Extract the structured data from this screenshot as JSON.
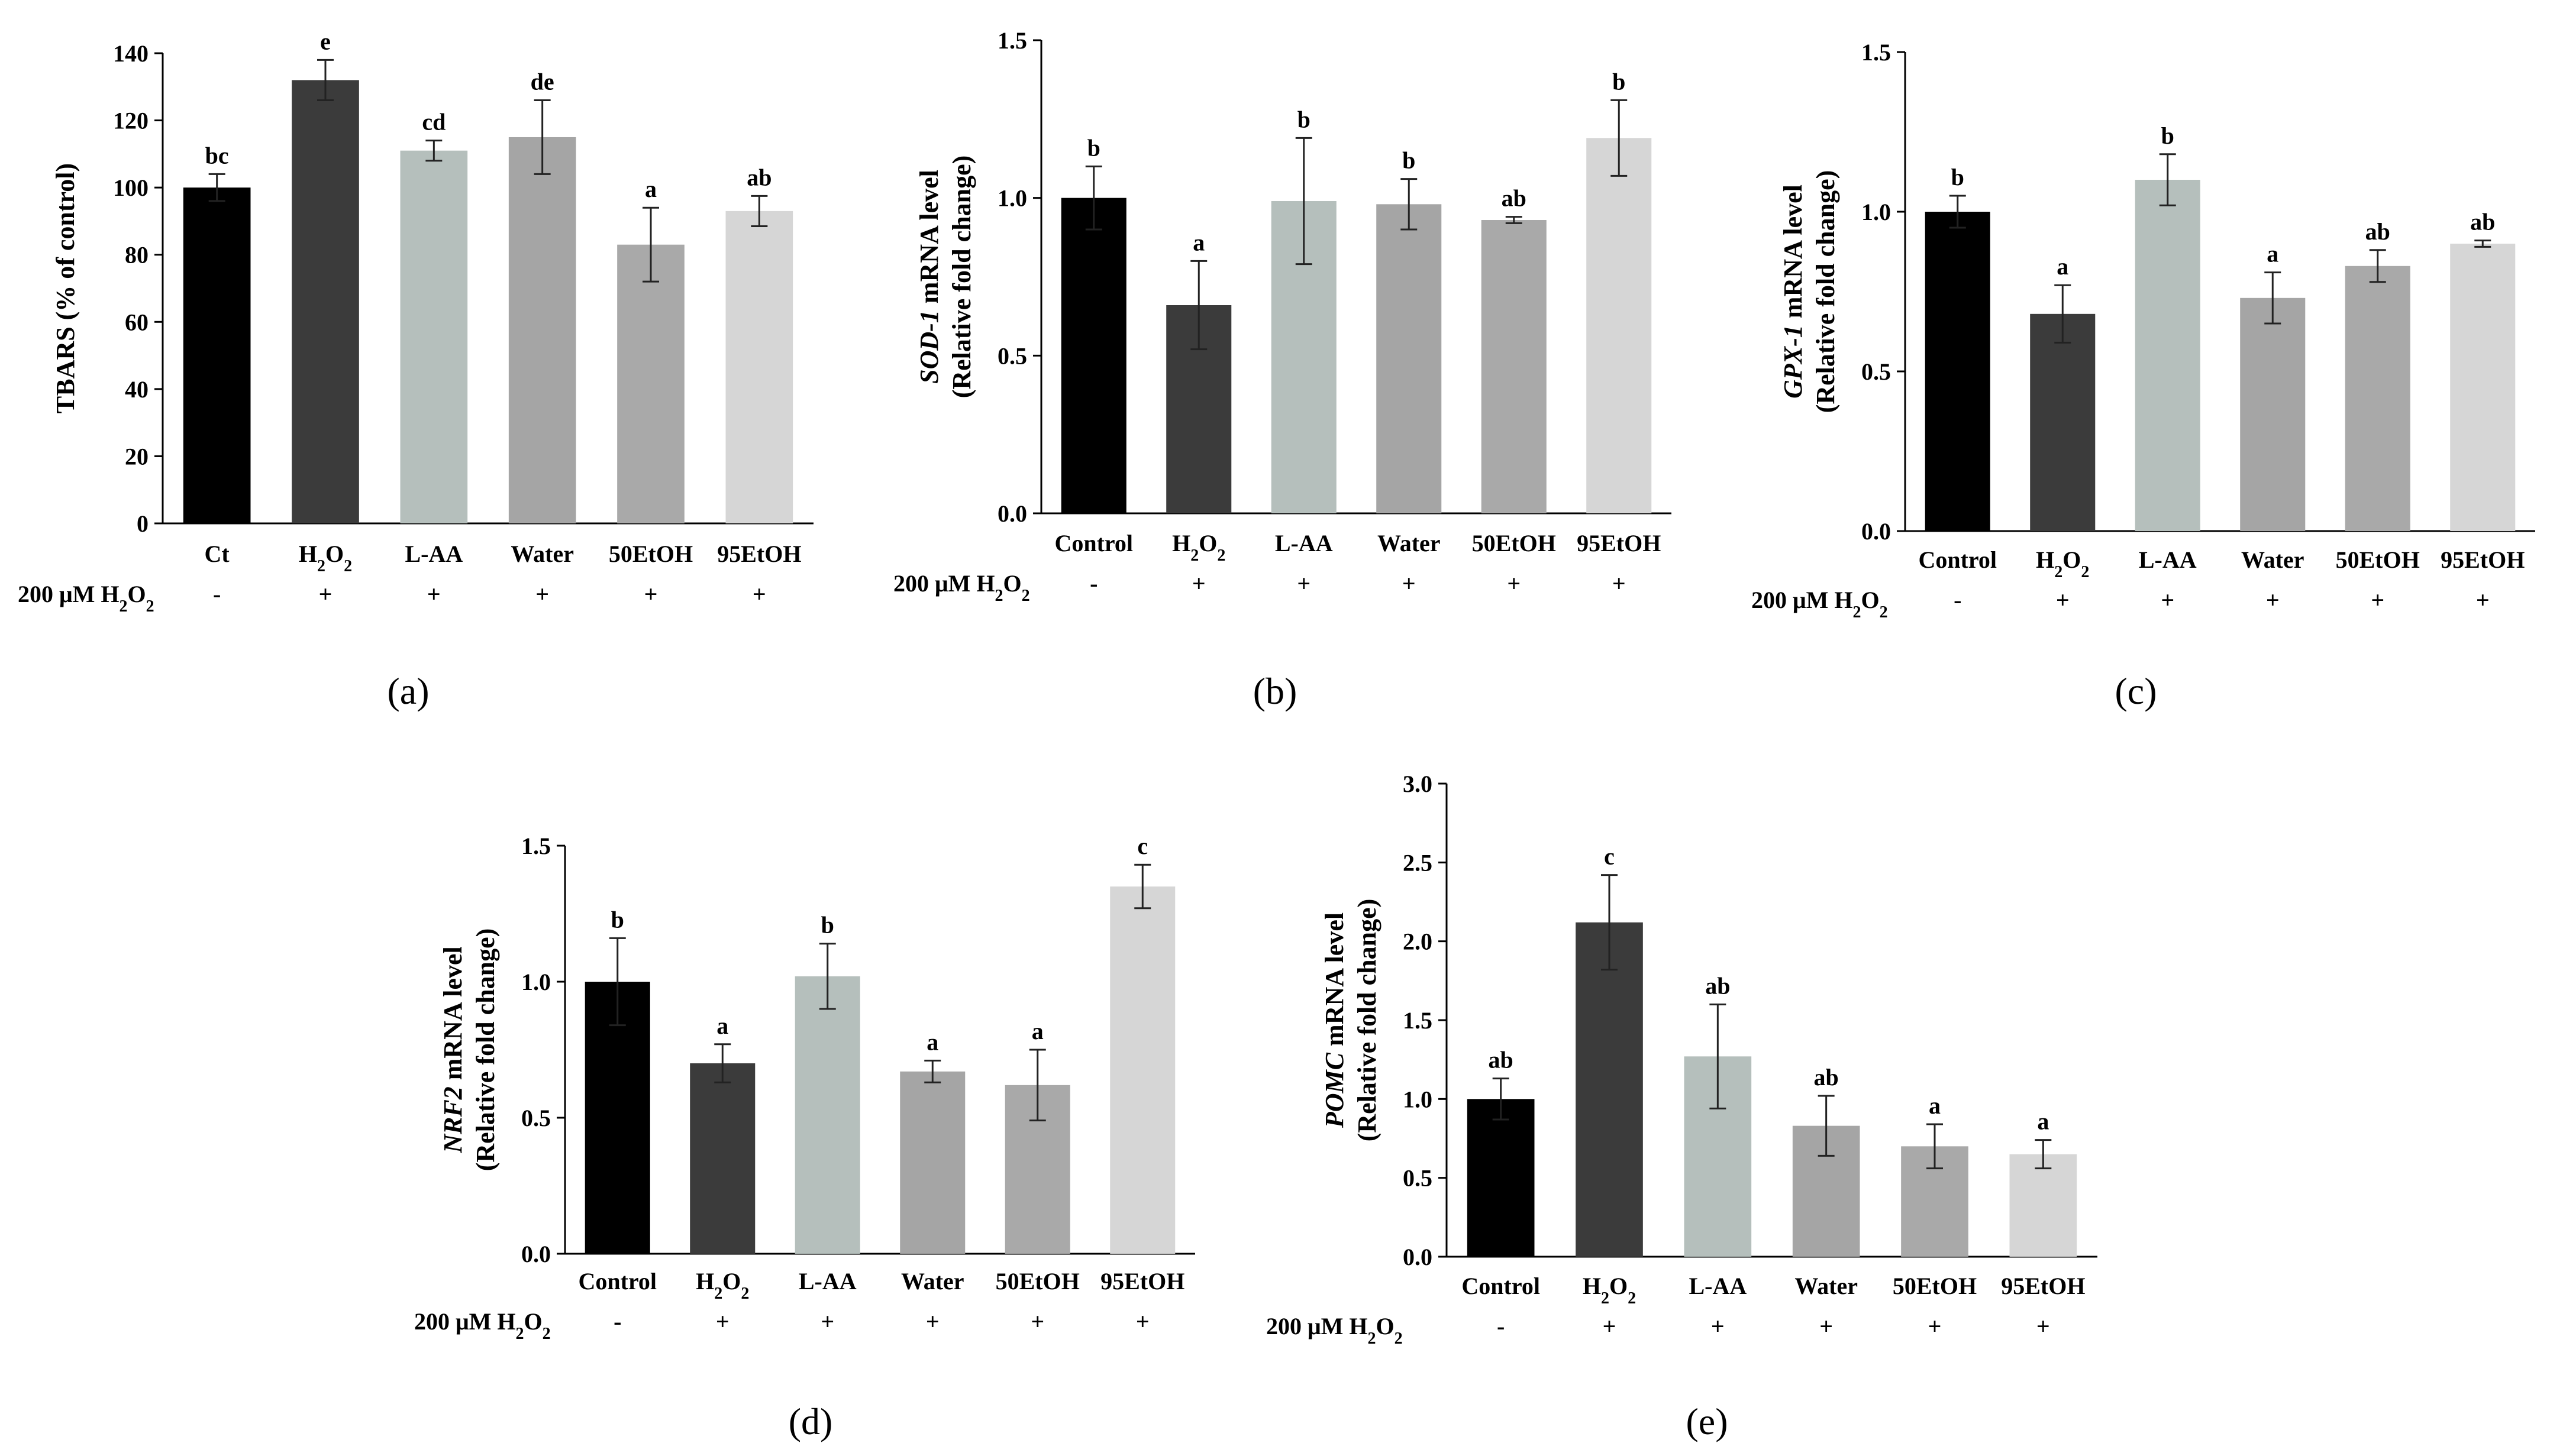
{
  "treatment_label_main": "200 μM H",
  "treatment_label_sub": "2",
  "treatment_label_tail": "O",
  "treatment_label_sub2": "2",
  "h2o2_parts": [
    "H",
    "2",
    "O",
    "2"
  ],
  "chart_data": [
    {
      "type": "bar",
      "panel_label": "(a)",
      "ylabel_italic": "",
      "ylabel_line1": "TBARS (% of control)",
      "ylabel_line2": "",
      "categories": [
        "Ct",
        "H2O2",
        "L-AA",
        "Water",
        "50EtOH",
        "95EtOH"
      ],
      "values": [
        100,
        132,
        111,
        115,
        83,
        93
      ],
      "errors": [
        4,
        6,
        3,
        11,
        11,
        4.5
      ],
      "significance": [
        "bc",
        "e",
        "cd",
        "de",
        "a",
        "ab"
      ],
      "treatment": [
        "-",
        "+",
        "+",
        "+",
        "+",
        "+"
      ],
      "ylim": [
        0,
        140
      ],
      "yticks": [
        0,
        20,
        40,
        60,
        80,
        100,
        120,
        140
      ],
      "tick_decimals": 0,
      "colors": [
        "#000000",
        "#3b3b3b",
        "#b5bfbc",
        "#a5a5a5",
        "#a9a9a9",
        "#d6d6d6"
      ]
    },
    {
      "type": "bar",
      "panel_label": "(b)",
      "ylabel_italic": "SOD-1",
      "ylabel_line1": " mRNA level",
      "ylabel_line2": "(Relative fold change)",
      "categories": [
        "Control",
        "H2O2",
        "L-AA",
        "Water",
        "50EtOH",
        "95EtOH"
      ],
      "values": [
        1.0,
        0.66,
        0.99,
        0.98,
        0.93,
        1.19
      ],
      "errors": [
        0.1,
        0.14,
        0.2,
        0.08,
        0.01,
        0.12
      ],
      "significance": [
        "b",
        "a",
        "b",
        "b",
        "ab",
        "b"
      ],
      "treatment": [
        "-",
        "+",
        "+",
        "+",
        "+",
        "+"
      ],
      "ylim": [
        0,
        1.5
      ],
      "yticks": [
        0,
        0.5,
        1.0,
        1.5
      ],
      "tick_decimals": 1,
      "colors": [
        "#000000",
        "#3b3b3b",
        "#b5bfbc",
        "#a5a5a5",
        "#a9a9a9",
        "#d6d6d6"
      ]
    },
    {
      "type": "bar",
      "panel_label": "(c)",
      "ylabel_italic": "GPX-1",
      "ylabel_line1": " mRNA level",
      "ylabel_line2": "(Relative fold change)",
      "categories": [
        "Control",
        "H2O2",
        "L-AA",
        "Water",
        "50EtOH",
        "95EtOH"
      ],
      "values": [
        1.0,
        0.68,
        1.1,
        0.73,
        0.83,
        0.9
      ],
      "errors": [
        0.05,
        0.09,
        0.08,
        0.08,
        0.05,
        0.01
      ],
      "significance": [
        "b",
        "a",
        "b",
        "a",
        "ab",
        "ab"
      ],
      "treatment": [
        "-",
        "+",
        "+",
        "+",
        "+",
        "+"
      ],
      "ylim": [
        0,
        1.5
      ],
      "yticks": [
        0,
        0.5,
        1.0,
        1.5
      ],
      "tick_decimals": 1,
      "colors": [
        "#000000",
        "#3b3b3b",
        "#b5bfbc",
        "#a5a5a5",
        "#a9a9a9",
        "#d6d6d6"
      ]
    },
    {
      "type": "bar",
      "panel_label": "(d)",
      "ylabel_italic": "NRF2",
      "ylabel_line1": " mRNA level",
      "ylabel_line2": "(Relative fold change)",
      "categories": [
        "Control",
        "H2O2",
        "L-AA",
        "Water",
        "50EtOH",
        "95EtOH"
      ],
      "values": [
        1.0,
        0.7,
        1.02,
        0.67,
        0.62,
        1.35
      ],
      "errors": [
        0.16,
        0.07,
        0.12,
        0.04,
        0.13,
        0.08
      ],
      "significance": [
        "b",
        "a",
        "b",
        "a",
        "a",
        "c"
      ],
      "treatment": [
        "-",
        "+",
        "+",
        "+",
        "+",
        "+"
      ],
      "ylim": [
        0,
        1.5
      ],
      "yticks": [
        0,
        0.5,
        1.0,
        1.5
      ],
      "tick_decimals": 1,
      "colors": [
        "#000000",
        "#3b3b3b",
        "#b5bfbc",
        "#a5a5a5",
        "#a9a9a9",
        "#d6d6d6"
      ]
    },
    {
      "type": "bar",
      "panel_label": "(e)",
      "ylabel_italic": "POMC",
      "ylabel_line1": " mRNA level",
      "ylabel_line2": "(Relative fold change)",
      "categories": [
        "Control",
        "H2O2",
        "L-AA",
        "Water",
        "50EtOH",
        "95EtOH"
      ],
      "values": [
        1.0,
        2.12,
        1.27,
        0.83,
        0.7,
        0.65
      ],
      "errors": [
        0.13,
        0.3,
        0.33,
        0.19,
        0.14,
        0.09
      ],
      "significance": [
        "ab",
        "c",
        "ab",
        "ab",
        "a",
        "a"
      ],
      "treatment": [
        "-",
        "+",
        "+",
        "+",
        "+",
        "+"
      ],
      "ylim": [
        0,
        3.0
      ],
      "yticks": [
        0,
        0.5,
        1.0,
        1.5,
        2.0,
        2.5,
        3.0
      ],
      "tick_decimals": 1,
      "colors": [
        "#000000",
        "#3b3b3b",
        "#b5bfbc",
        "#a5a5a5",
        "#a9a9a9",
        "#d6d6d6"
      ]
    }
  ]
}
